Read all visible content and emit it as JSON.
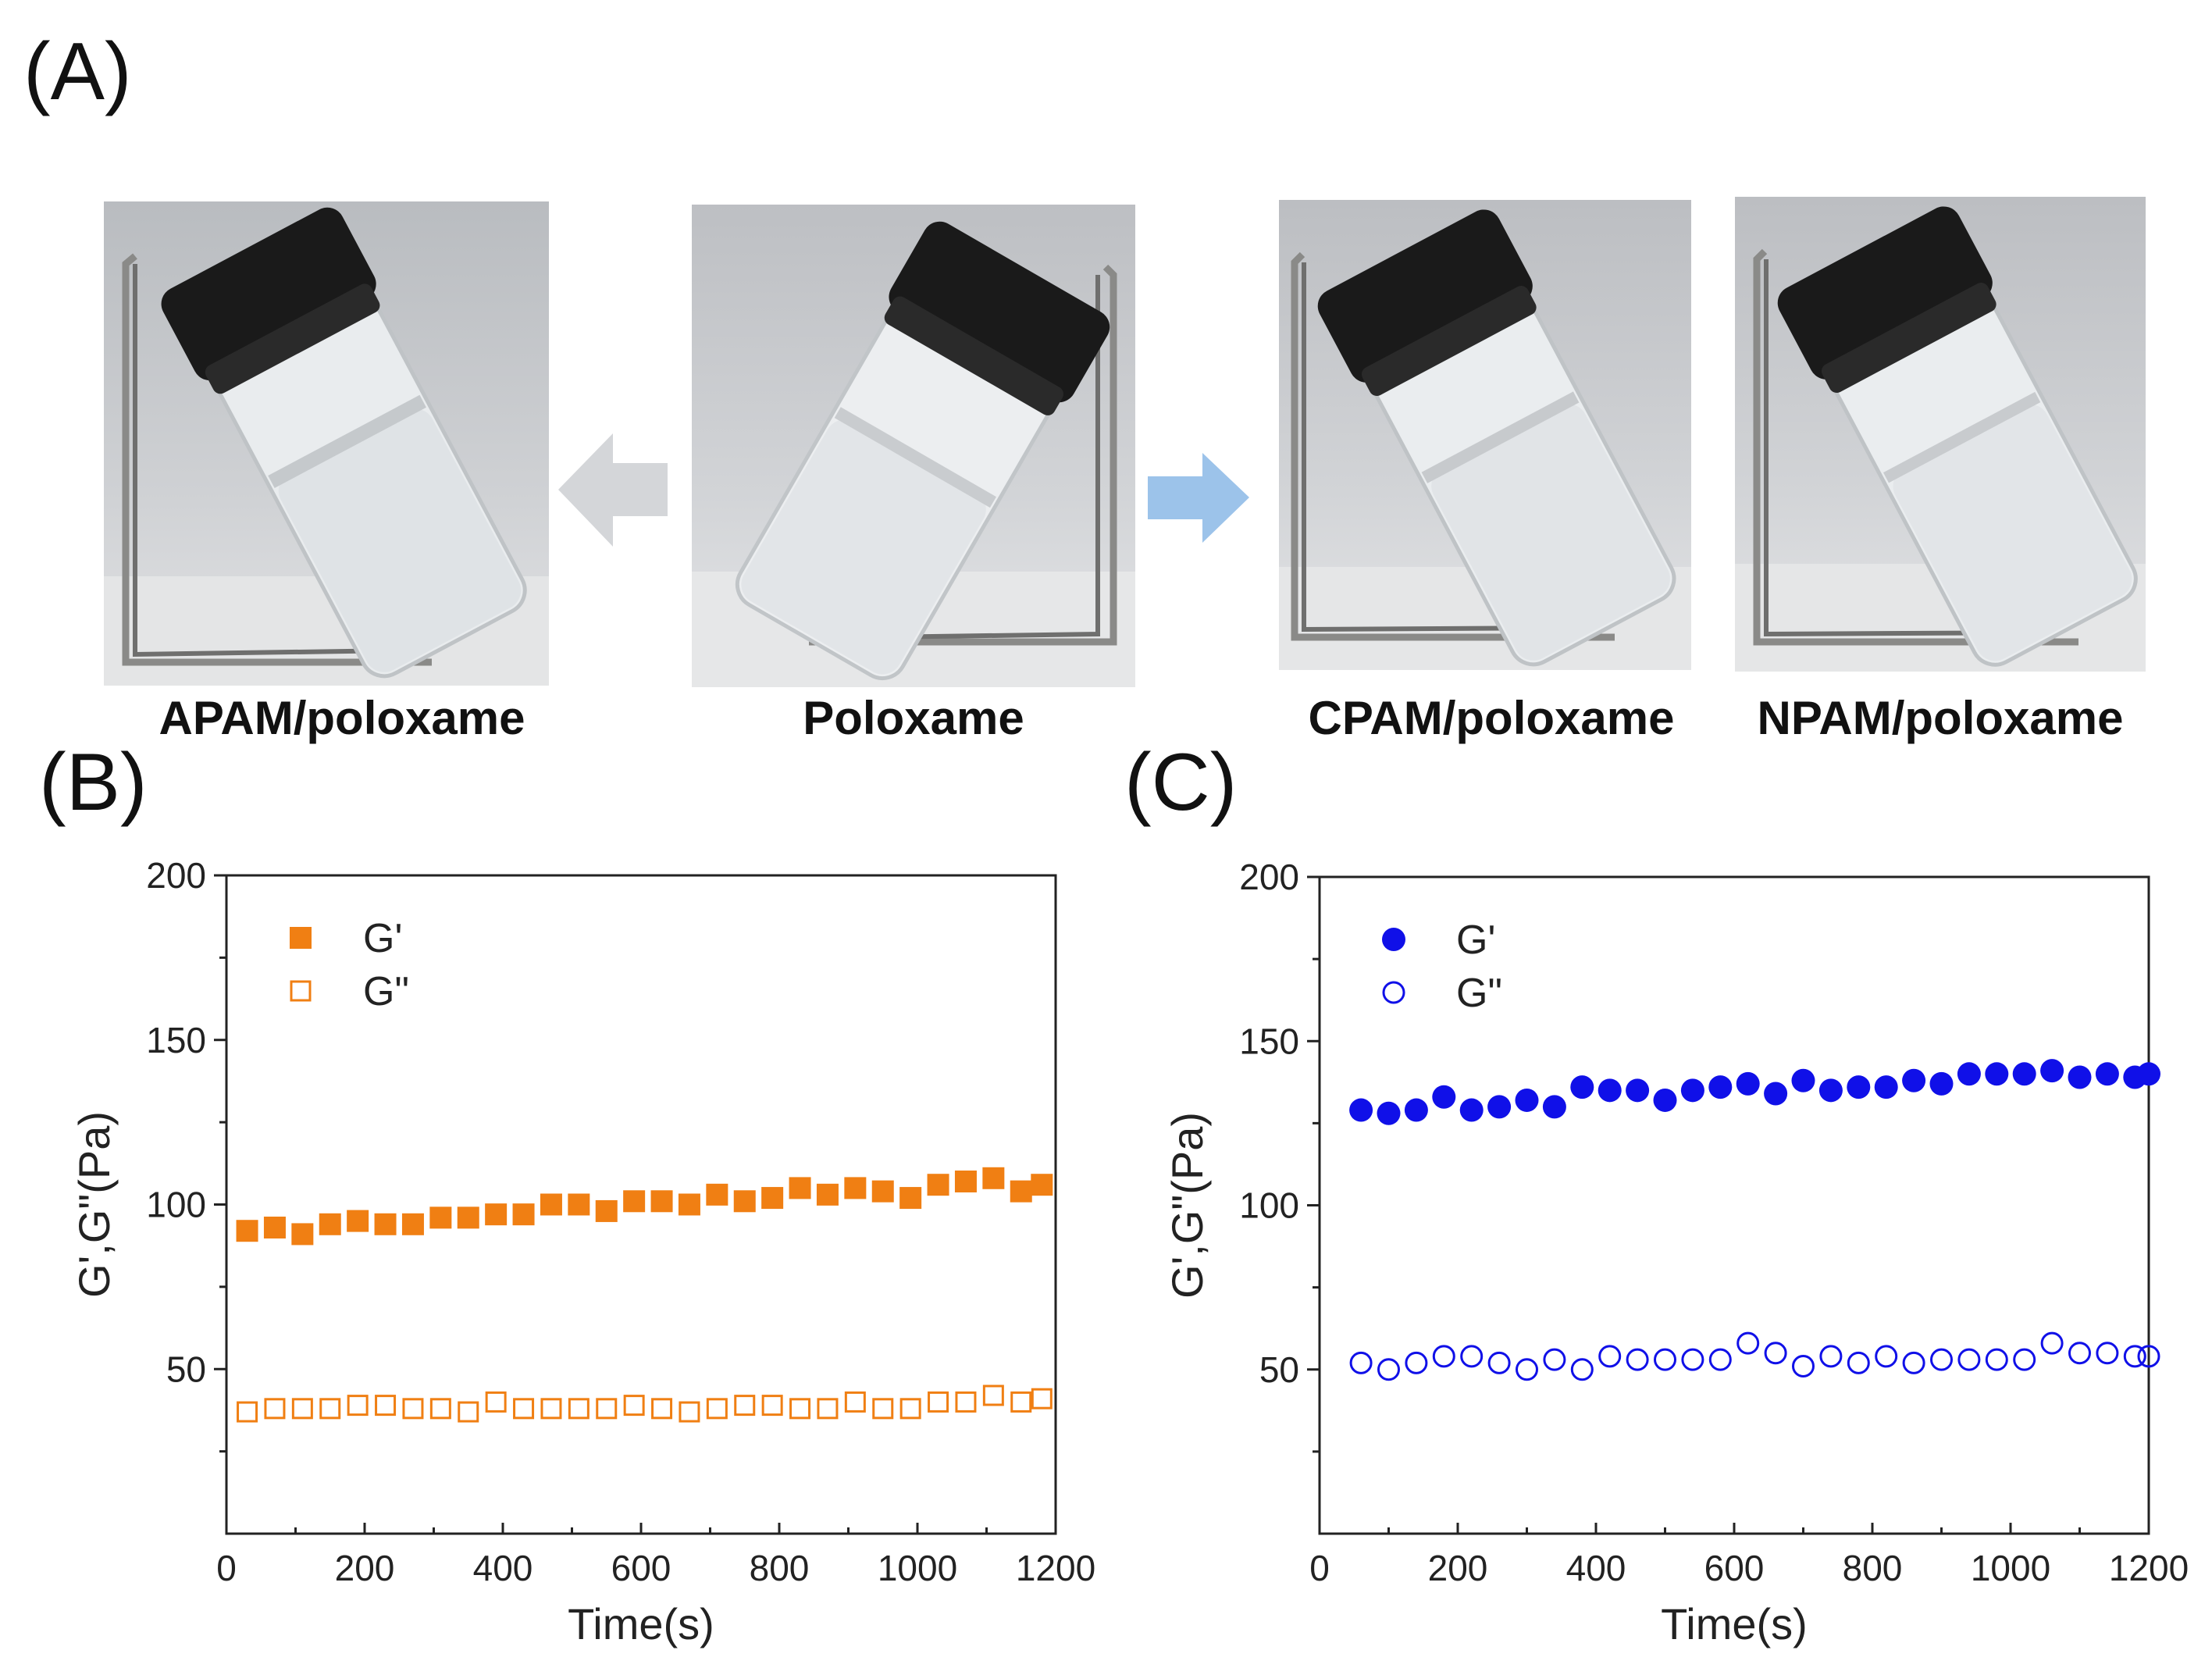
{
  "panels": {
    "a_label": "(A)",
    "b_label": "(B)",
    "c_label": "(C)"
  },
  "photos": [
    {
      "caption": "APAM/poloxame"
    },
    {
      "caption": "Poloxame"
    },
    {
      "caption": "CPAM/poloxame"
    },
    {
      "caption": "NPAM/poloxame"
    }
  ],
  "colors": {
    "orange": "#f07f13",
    "blue": "#1010e8",
    "arrow_gray": "#d4d6d9",
    "arrow_blue": "#9cc3ea"
  },
  "chart_data": [
    {
      "type": "scatter",
      "panel": "(B)",
      "xlabel": "Time(s)",
      "ylabel": "G',G\"(Pa)",
      "xlim": [
        0,
        1200
      ],
      "ylim": [
        0,
        200
      ],
      "xticks": [
        0,
        200,
        400,
        600,
        800,
        1000,
        1200
      ],
      "yticks": [
        50,
        100,
        150,
        200
      ],
      "legend_position": "top-left",
      "series": [
        {
          "name": "G'",
          "marker": "filled-square",
          "x": [
            30,
            70,
            110,
            150,
            190,
            230,
            270,
            310,
            350,
            390,
            430,
            470,
            510,
            550,
            590,
            630,
            670,
            710,
            750,
            790,
            830,
            870,
            910,
            950,
            990,
            1030,
            1070,
            1110,
            1150,
            1180
          ],
          "values": [
            92,
            93,
            91,
            94,
            95,
            94,
            94,
            96,
            96,
            97,
            97,
            100,
            100,
            98,
            101,
            101,
            100,
            103,
            101,
            102,
            105,
            103,
            105,
            104,
            102,
            106,
            107,
            108,
            104,
            106
          ]
        },
        {
          "name": "G\"",
          "marker": "open-square",
          "x": [
            30,
            70,
            110,
            150,
            190,
            230,
            270,
            310,
            350,
            390,
            430,
            470,
            510,
            550,
            590,
            630,
            670,
            710,
            750,
            790,
            830,
            870,
            910,
            950,
            990,
            1030,
            1070,
            1110,
            1150,
            1180
          ],
          "values": [
            37,
            38,
            38,
            38,
            39,
            39,
            38,
            38,
            37,
            40,
            38,
            38,
            38,
            38,
            39,
            38,
            37,
            38,
            39,
            39,
            38,
            38,
            40,
            38,
            38,
            40,
            40,
            42,
            40,
            41
          ]
        }
      ]
    },
    {
      "type": "scatter",
      "panel": "(C)",
      "xlabel": "Time(s)",
      "ylabel": "G',G\"(Pa)",
      "xlim": [
        0,
        1200
      ],
      "ylim": [
        0,
        200
      ],
      "xticks": [
        0,
        200,
        400,
        600,
        800,
        1000,
        1200
      ],
      "yticks": [
        50,
        100,
        150,
        200
      ],
      "legend_position": "top-left",
      "series": [
        {
          "name": "G'",
          "marker": "filled-circle",
          "x": [
            60,
            100,
            140,
            180,
            220,
            260,
            300,
            340,
            380,
            420,
            460,
            500,
            540,
            580,
            620,
            660,
            700,
            740,
            780,
            820,
            860,
            900,
            940,
            980,
            1020,
            1060,
            1100,
            1140,
            1180,
            1200
          ],
          "values": [
            129,
            128,
            129,
            133,
            129,
            130,
            132,
            130,
            136,
            135,
            135,
            132,
            135,
            136,
            137,
            134,
            138,
            135,
            136,
            136,
            138,
            137,
            140,
            140,
            140,
            141,
            139,
            140,
            139,
            140
          ]
        },
        {
          "name": "G\"",
          "marker": "open-circle",
          "x": [
            60,
            100,
            140,
            180,
            220,
            260,
            300,
            340,
            380,
            420,
            460,
            500,
            540,
            580,
            620,
            660,
            700,
            740,
            780,
            820,
            860,
            900,
            940,
            980,
            1020,
            1060,
            1100,
            1140,
            1180,
            1200
          ],
          "values": [
            52,
            50,
            52,
            54,
            54,
            52,
            50,
            53,
            50,
            54,
            53,
            53,
            53,
            53,
            58,
            55,
            51,
            54,
            52,
            54,
            52,
            53,
            53,
            53,
            53,
            58,
            55,
            55,
            54,
            54
          ]
        }
      ]
    }
  ]
}
